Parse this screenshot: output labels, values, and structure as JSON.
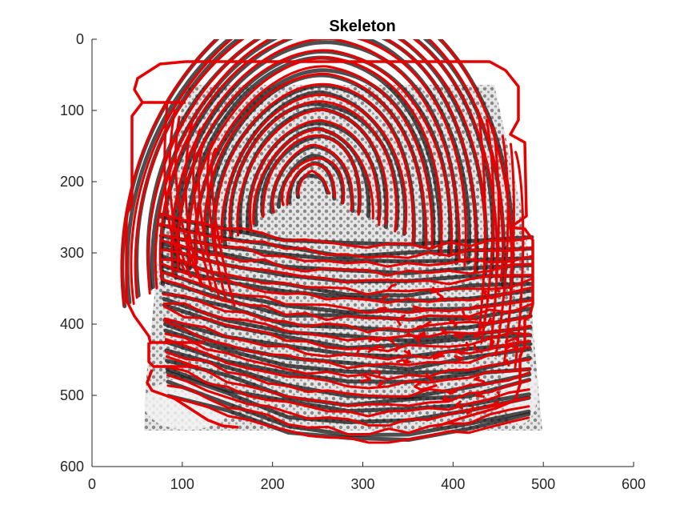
{
  "figure": {
    "title": "Skeleton",
    "x_ticks": [
      "0",
      "100",
      "200",
      "300",
      "400",
      "500",
      "600"
    ],
    "y_ticks": [
      "0",
      "100",
      "200",
      "300",
      "400",
      "500",
      "600"
    ],
    "xlim": [
      0,
      600
    ],
    "ylim": [
      0,
      600
    ],
    "y_axis_reversed": true,
    "colors": {
      "skeleton": "#e60000",
      "ridges": "#1c1c1c",
      "background": "#ffffff",
      "axes": "#262626"
    }
  }
}
